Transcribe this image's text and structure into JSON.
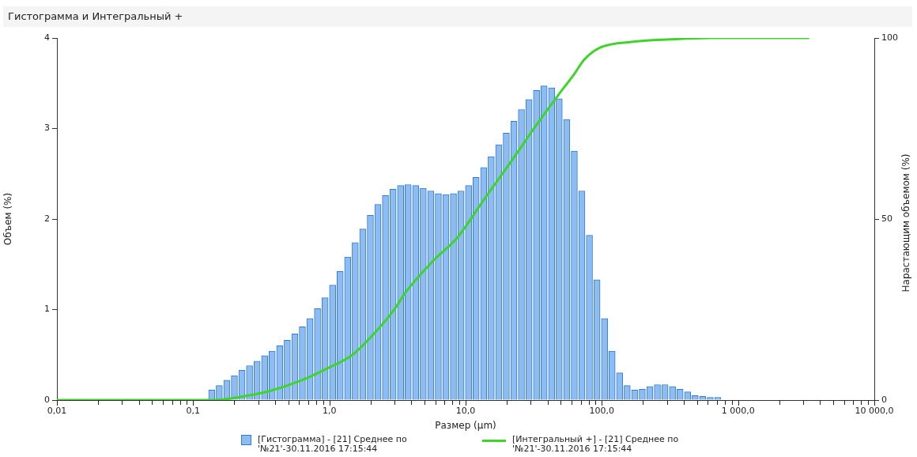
{
  "chart_data": {
    "type": "histogram",
    "title": "Гистограмма и Интегральный +",
    "xlabel": "Размер (µm)",
    "ylabel": "Объем (%)",
    "y2label": "Нарастающим объемом (%)",
    "bins": [
      0.01,
      0.01136,
      0.01291,
      0.01467,
      0.01666,
      0.01893,
      0.02151,
      0.02444,
      0.02777,
      0.03155,
      0.03584,
      0.04072,
      0.04627,
      0.05257,
      0.05973,
      0.06786,
      0.0771,
      0.0876,
      0.09952,
      0.1131,
      0.1285,
      0.1459,
      0.1658,
      0.1884,
      0.214,
      0.2432,
      0.2763,
      0.3139,
      0.3567,
      0.4052,
      0.4604,
      0.523,
      0.5943,
      0.6752,
      0.7671,
      0.8716,
      0.9902,
      1.125,
      1.278,
      1.452,
      1.65,
      1.875,
      2.13,
      2.42,
      2.75,
      3.124,
      3.55,
      4.033,
      4.582,
      5.206,
      5.915,
      6.72,
      7.635,
      8.675,
      9.856,
      11.2,
      12.72,
      14.46,
      16.42,
      18.66,
      21.2,
      24.09,
      27.37,
      31.1,
      35.33,
      40.14,
      45.61,
      51.82,
      58.88,
      66.89,
      76.01,
      86.36,
      98.11,
      111.5,
      126.7,
      143.9,
      163.5,
      185.8,
      211,
      239.8,
      272.4,
      309.5,
      351.7,
      399.6,
      454,
      515.8,
      586,
      665.8,
      756.4,
      859.4,
      976.5,
      1109,
      1260,
      1432,
      1627,
      1849,
      2100,
      2386,
      2711,
      3081,
      3500
    ],
    "series": [
      {
        "name": "[Гистограмма] - [21] Среднее по '№21'-30.11.2016 17:15:44",
        "color": "#8fbcf0",
        "values": [
          0,
          0,
          0,
          0,
          0,
          0,
          0,
          0,
          0,
          0,
          0,
          0,
          0,
          0,
          0,
          0,
          0,
          0,
          0,
          0,
          0.11,
          0.16,
          0.22,
          0.27,
          0.33,
          0.38,
          0.43,
          0.49,
          0.54,
          0.6,
          0.66,
          0.73,
          0.81,
          0.9,
          1.01,
          1.13,
          1.27,
          1.42,
          1.58,
          1.74,
          1.89,
          2.04,
          2.16,
          2.26,
          2.33,
          2.37,
          2.38,
          2.37,
          2.34,
          2.31,
          2.28,
          2.27,
          2.28,
          2.31,
          2.37,
          2.46,
          2.57,
          2.69,
          2.82,
          2.95,
          3.08,
          3.21,
          3.32,
          3.42,
          3.47,
          3.45,
          3.33,
          3.1,
          2.75,
          2.31,
          1.82,
          1.33,
          0.9,
          0.54,
          0.3,
          0.16,
          0.11,
          0.12,
          0.15,
          0.17,
          0.17,
          0.15,
          0.12,
          0.09,
          0.05,
          0.04,
          0.03,
          0.03,
          0,
          0,
          0,
          0,
          0,
          0,
          0,
          0,
          0,
          0,
          0,
          0
        ]
      },
      {
        "name": "[Интегральный +] - [21] Среднее по '№21'-30.11.2016 17:15:44",
        "type": "line",
        "axis": "y2",
        "color": "#3fd42a",
        "x": [
          0.01,
          0.141,
          0.184,
          0.24,
          0.358,
          0.611,
          0.948,
          1.49,
          2.32,
          3.02,
          3.6,
          5.66,
          8.79,
          13.6,
          21.4,
          33.3,
          47.6,
          62.6,
          74.2,
          96.6,
          165,
          320,
          627,
          3330
        ],
        "values": [
          0,
          0,
          0.4,
          1.1,
          2.4,
          5.3,
          8.6,
          12.6,
          19.9,
          25.2,
          29.6,
          38.1,
          45.1,
          55.3,
          65.7,
          76.1,
          84.1,
          90,
          94,
          97.3,
          98.9,
          99.6,
          100,
          100
        ]
      }
    ],
    "log": "x",
    "xlim": [
      0.01,
      10000
    ],
    "xticks": [
      {
        "value": 0.01,
        "label": "0,01"
      },
      {
        "value": 0.02,
        "label": null
      },
      {
        "value": 0.03,
        "label": null
      },
      {
        "value": 0.04,
        "label": null
      },
      {
        "value": 0.05,
        "label": null
      },
      {
        "value": 0.06,
        "label": null
      },
      {
        "value": 0.07,
        "label": null
      },
      {
        "value": 0.08,
        "label": null
      },
      {
        "value": 0.09,
        "label": null
      },
      {
        "value": 0.1,
        "label": "0,1"
      },
      {
        "value": 0.2,
        "label": null
      },
      {
        "value": 0.3,
        "label": null
      },
      {
        "value": 0.4,
        "label": null
      },
      {
        "value": 0.5,
        "label": null
      },
      {
        "value": 0.6,
        "label": null
      },
      {
        "value": 0.7,
        "label": null
      },
      {
        "value": 0.8,
        "label": null
      },
      {
        "value": 0.9,
        "label": null
      },
      {
        "value": 1,
        "label": "1,0"
      },
      {
        "value": 2,
        "label": null
      },
      {
        "value": 3,
        "label": null
      },
      {
        "value": 4,
        "label": null
      },
      {
        "value": 5,
        "label": null
      },
      {
        "value": 6,
        "label": null
      },
      {
        "value": 7,
        "label": null
      },
      {
        "value": 8,
        "label": null
      },
      {
        "value": 9,
        "label": null
      },
      {
        "value": 10,
        "label": "10,0"
      },
      {
        "value": 20,
        "label": null
      },
      {
        "value": 30,
        "label": null
      },
      {
        "value": 40,
        "label": null
      },
      {
        "value": 50,
        "label": null
      },
      {
        "value": 60,
        "label": null
      },
      {
        "value": 70,
        "label": null
      },
      {
        "value": 80,
        "label": null
      },
      {
        "value": 90,
        "label": null
      },
      {
        "value": 100,
        "label": "100,0"
      },
      {
        "value": 200,
        "label": null
      },
      {
        "value": 300,
        "label": null
      },
      {
        "value": 400,
        "label": null
      },
      {
        "value": 500,
        "label": null
      },
      {
        "value": 600,
        "label": null
      },
      {
        "value": 700,
        "label": null
      },
      {
        "value": 800,
        "label": null
      },
      {
        "value": 900,
        "label": null
      },
      {
        "value": 1000,
        "label": "1 000,0"
      },
      {
        "value": 2000,
        "label": null
      },
      {
        "value": 3000,
        "label": null
      },
      {
        "value": 4000,
        "label": null
      },
      {
        "value": 5000,
        "label": null
      },
      {
        "value": 6000,
        "label": null
      },
      {
        "value": 7000,
        "label": null
      },
      {
        "value": 8000,
        "label": null
      },
      {
        "value": 9000,
        "label": null
      },
      {
        "value": 10000,
        "label": "10 000,0"
      }
    ],
    "ylim": [
      0,
      4
    ],
    "yticks": [
      0,
      1,
      2,
      3,
      4
    ],
    "y2lim": [
      0,
      100
    ],
    "y2ticks": [
      0,
      50,
      100
    ],
    "legend": "bottom"
  }
}
